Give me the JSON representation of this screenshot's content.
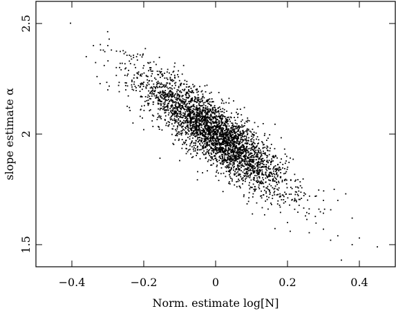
{
  "chart_data": {
    "type": "scatter",
    "xlabel": "Norm. estimate log[N]",
    "ylabel": "slope estimate α",
    "xlim": [
      -0.5,
      0.5
    ],
    "ylim": [
      1.4,
      2.6
    ],
    "x_ticks": [
      -0.4,
      -0.2,
      0,
      0.2,
      0.4
    ],
    "x_tick_labels": [
      "−0.4",
      "−0.2",
      "0",
      "0.2",
      "0.4"
    ],
    "y_ticks": [
      1.5,
      2,
      2.5
    ],
    "y_tick_labels": [
      "1.5",
      "2",
      "2.5"
    ],
    "grid": false,
    "marker_color": "#000000",
    "series": [
      {
        "n_points": 3500,
        "x_mean": 0.0,
        "y_mean": 2.0,
        "x_sd": 0.1,
        "y_sd": 0.135,
        "correlation": -0.86,
        "points": [
          [
            -0.36,
            2.35
          ],
          [
            -0.34,
            2.4
          ],
          [
            -0.32,
            2.38
          ],
          [
            -0.3,
            2.4
          ],
          [
            -0.33,
            2.26
          ],
          [
            -0.31,
            2.31
          ],
          [
            -0.29,
            2.38
          ],
          [
            -0.26,
            2.32
          ],
          [
            -0.24,
            2.33
          ],
          [
            -0.22,
            2.35
          ],
          [
            -0.3,
            2.2
          ],
          [
            -0.27,
            2.22
          ],
          [
            -0.25,
            2.2
          ],
          [
            -0.2,
            2.02
          ],
          [
            -0.24,
            2.12
          ],
          [
            -0.21,
            2.08
          ],
          [
            -0.23,
            2.05
          ],
          [
            0.3,
            1.57
          ],
          [
            0.32,
            1.52
          ],
          [
            0.34,
            1.54
          ],
          [
            0.35,
            1.43
          ],
          [
            0.38,
            1.5
          ],
          [
            0.4,
            1.53
          ],
          [
            0.45,
            1.49
          ],
          [
            0.38,
            1.62
          ],
          [
            0.34,
            1.7
          ],
          [
            0.33,
            1.75
          ],
          [
            0.3,
            1.7
          ],
          [
            0.28,
            1.72
          ],
          [
            0.25,
            1.63
          ],
          [
            0.22,
            1.66
          ],
          [
            0.2,
            1.6
          ],
          [
            -0.18,
            2.3
          ],
          [
            -0.15,
            2.27
          ],
          [
            0.05,
            2.15
          ],
          [
            0.08,
            2.12
          ],
          [
            -0.05,
            1.83
          ],
          [
            -0.1,
            1.88
          ],
          [
            0.12,
            1.76
          ],
          [
            0.18,
            1.72
          ]
        ]
      }
    ]
  }
}
